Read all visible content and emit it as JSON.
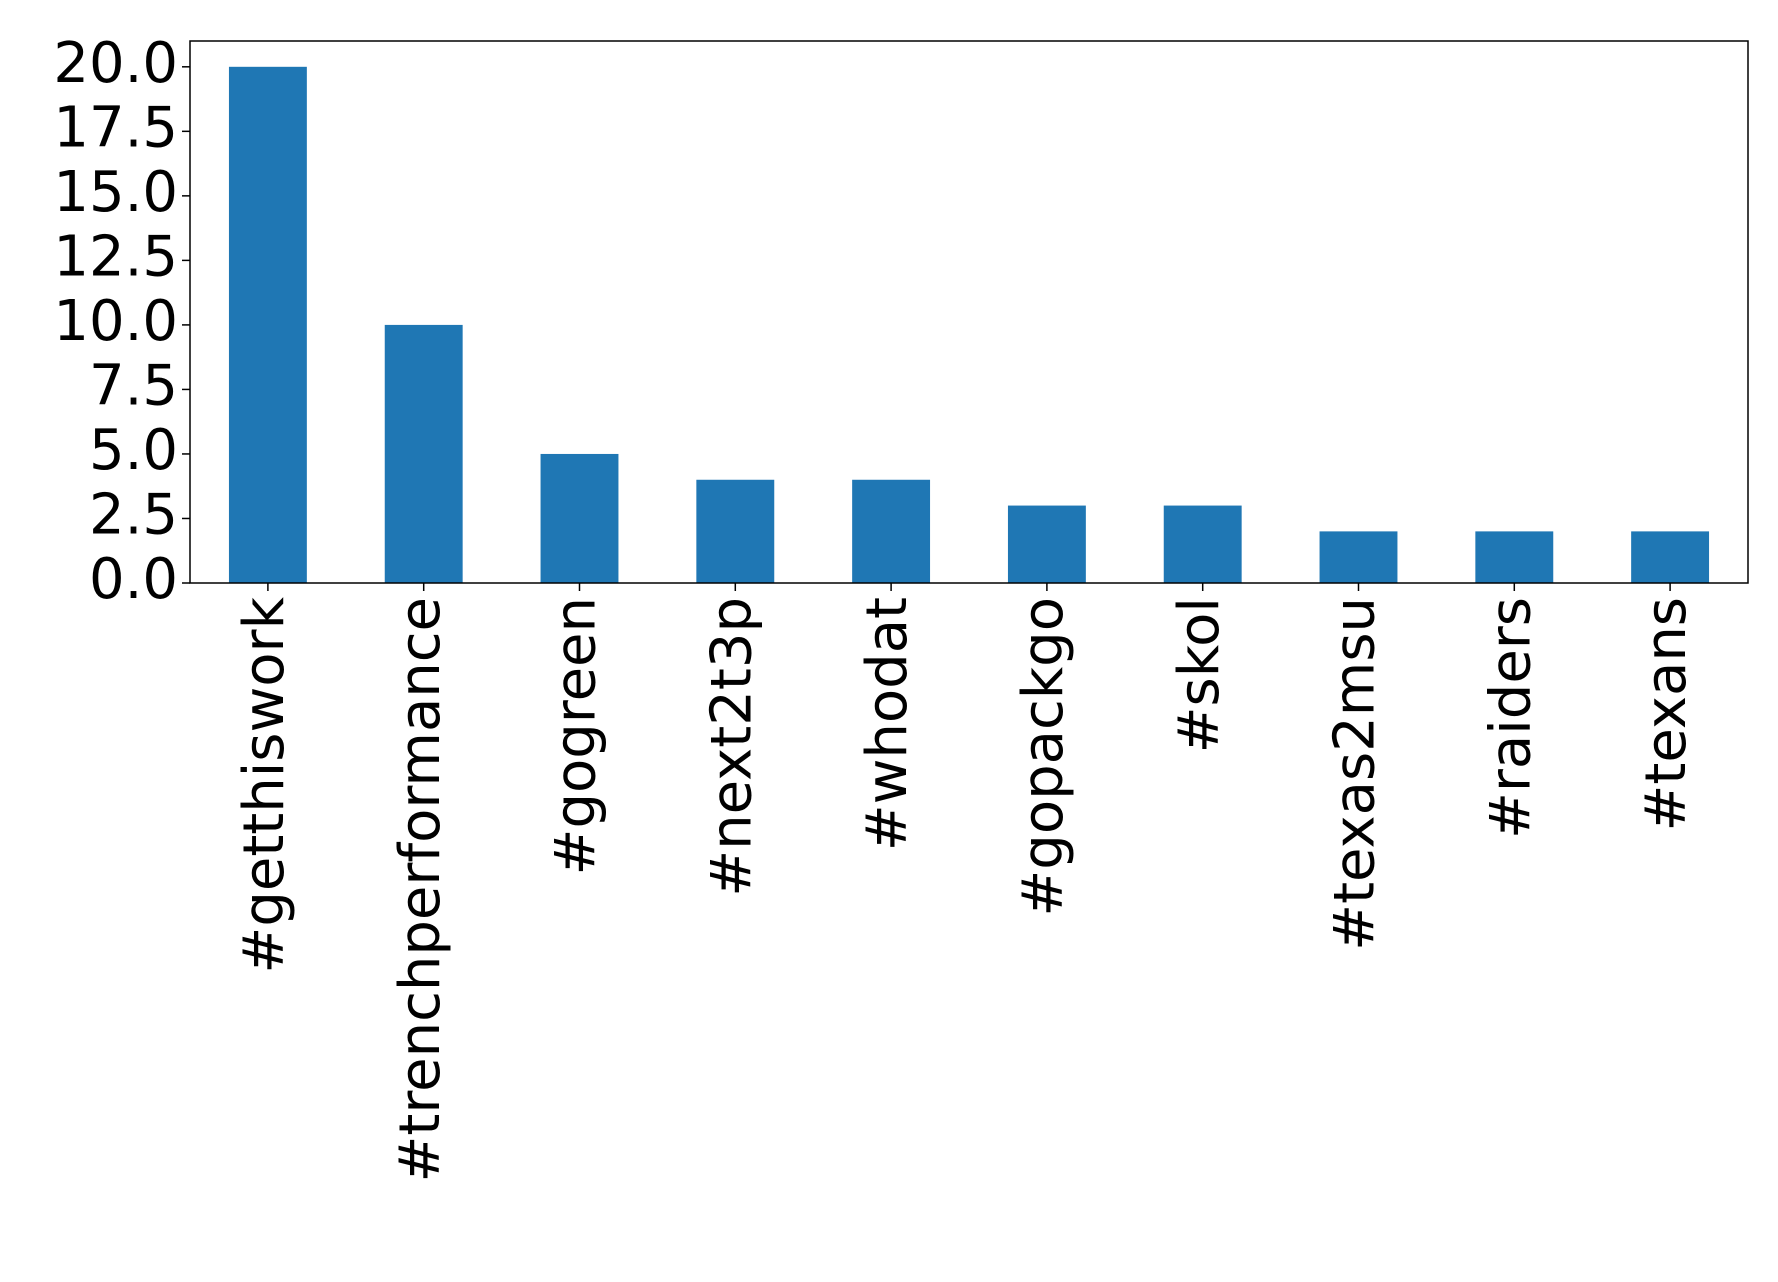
{
  "chart_data": {
    "type": "bar",
    "categories": [
      "#getthiswork",
      "#trenchperformance",
      "#gogreen",
      "#next2t3p",
      "#whodat",
      "#gopackgo",
      "#skol",
      "#texas2msu",
      "#raiders",
      "#texans"
    ],
    "values": [
      20,
      10,
      5,
      4,
      4,
      3,
      3,
      2,
      2,
      2
    ],
    "color": "#1f77b4",
    "ylim": [
      0,
      21
    ],
    "yticks": [
      {
        "value": 0,
        "label": "0.0"
      },
      {
        "value": 2.5,
        "label": "2.5"
      },
      {
        "value": 5,
        "label": "5.0"
      },
      {
        "value": 7.5,
        "label": "7.5"
      },
      {
        "value": 10,
        "label": "10.0"
      },
      {
        "value": 12.5,
        "label": "12.5"
      },
      {
        "value": 15,
        "label": "15.0"
      },
      {
        "value": 17.5,
        "label": "17.5"
      },
      {
        "value": 20,
        "label": "20.0"
      }
    ],
    "grid": false
  }
}
